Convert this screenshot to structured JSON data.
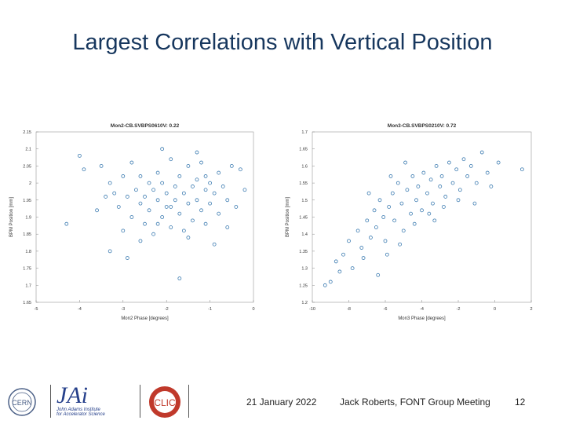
{
  "slide": {
    "title": "Largest Correlations with Vertical Position",
    "date": "21 January 2022",
    "author_meeting": "Jack Roberts, FONT Group Meeting",
    "page_number": "12"
  },
  "logos": {
    "cern": "CERN",
    "jai": "JAi",
    "jai_text_line1": "John Adams Institute",
    "jai_text_line2": "for Accelerator Science",
    "clic": "CLIC"
  },
  "colors": {
    "title": "#17375e",
    "marker": "#3a7ab0"
  },
  "chart_data": [
    {
      "type": "scatter",
      "title": "Mon2-CB.SVBPS0610V: 0.22",
      "xlabel": "Mon2 Phase [degrees]",
      "ylabel": "BPM Position [mm]",
      "xlim": [
        -5,
        0
      ],
      "ylim": [
        1.65,
        2.15
      ],
      "xticks": [
        "-5",
        "-4",
        "-3",
        "-2",
        "-1",
        "0"
      ],
      "yticks": [
        "2.15",
        "2.1",
        "2.05",
        "2",
        "1.95",
        "1.9",
        "1.85",
        "1.8",
        "1.75",
        "1.7",
        "1.65"
      ],
      "correlation": 0.22,
      "points": [
        [
          -4.0,
          2.08
        ],
        [
          -3.9,
          2.04
        ],
        [
          -3.5,
          2.05
        ],
        [
          -3.3,
          2.0
        ],
        [
          -3.2,
          1.97
        ],
        [
          -3.1,
          1.93
        ],
        [
          -3.0,
          2.02
        ],
        [
          -2.9,
          1.96
        ],
        [
          -2.8,
          1.9
        ],
        [
          -2.8,
          2.06
        ],
        [
          -2.7,
          1.98
        ],
        [
          -2.6,
          1.94
        ],
        [
          -2.6,
          2.02
        ],
        [
          -2.5,
          1.88
        ],
        [
          -2.5,
          1.96
        ],
        [
          -2.4,
          2.0
        ],
        [
          -2.4,
          1.92
        ],
        [
          -2.3,
          1.85
        ],
        [
          -2.3,
          1.98
        ],
        [
          -2.2,
          2.03
        ],
        [
          -2.2,
          1.95
        ],
        [
          -2.1,
          1.9
        ],
        [
          -2.1,
          2.0
        ],
        [
          -2.0,
          1.97
        ],
        [
          -2.0,
          1.93
        ],
        [
          -1.9,
          2.07
        ],
        [
          -1.9,
          1.87
        ],
        [
          -1.8,
          1.99
        ],
        [
          -1.8,
          1.95
        ],
        [
          -1.7,
          2.02
        ],
        [
          -1.7,
          1.91
        ],
        [
          -1.6,
          1.97
        ],
        [
          -1.6,
          1.86
        ],
        [
          -1.5,
          2.05
        ],
        [
          -1.5,
          1.94
        ],
        [
          -1.4,
          1.99
        ],
        [
          -1.4,
          1.89
        ],
        [
          -1.3,
          2.01
        ],
        [
          -1.3,
          1.95
        ],
        [
          -1.2,
          1.92
        ],
        [
          -1.2,
          2.06
        ],
        [
          -1.1,
          1.98
        ],
        [
          -1.1,
          1.88
        ],
        [
          -1.0,
          2.0
        ],
        [
          -1.0,
          1.94
        ],
        [
          -0.9,
          1.97
        ],
        [
          -0.8,
          2.03
        ],
        [
          -0.8,
          1.91
        ],
        [
          -0.7,
          1.99
        ],
        [
          -0.6,
          1.95
        ],
        [
          -0.5,
          2.05
        ],
        [
          -0.4,
          1.93
        ],
        [
          -3.3,
          1.8
        ],
        [
          -2.9,
          1.78
        ],
        [
          -1.7,
          1.72
        ],
        [
          -0.9,
          1.82
        ],
        [
          -4.3,
          1.88
        ],
        [
          -3.6,
          1.92
        ],
        [
          -2.1,
          2.1
        ],
        [
          -1.3,
          2.09
        ],
        [
          -0.2,
          1.98
        ],
        [
          -3.0,
          1.86
        ],
        [
          -2.6,
          1.83
        ],
        [
          -1.5,
          1.84
        ],
        [
          -0.6,
          1.87
        ],
        [
          -3.4,
          1.96
        ],
        [
          -2.2,
          1.88
        ],
        [
          -1.9,
          1.93
        ],
        [
          -1.1,
          2.02
        ],
        [
          -0.3,
          2.04
        ]
      ]
    },
    {
      "type": "scatter",
      "title": "Mon3-CB.SVBPS0210V: 0.72",
      "xlabel": "Mon3 Phase [degrees]",
      "ylabel": "BPM Position [mm]",
      "xlim": [
        -10,
        2
      ],
      "ylim": [
        1.2,
        1.7
      ],
      "xticks": [
        "-10",
        "-8",
        "-6",
        "-4",
        "-2",
        "0",
        "2"
      ],
      "yticks": [
        "1.7",
        "1.65",
        "1.6",
        "1.55",
        "1.5",
        "1.45",
        "1.4",
        "1.35",
        "1.3",
        "1.25",
        "1.2"
      ],
      "correlation": 0.72,
      "points": [
        [
          -9.0,
          1.26
        ],
        [
          -8.7,
          1.32
        ],
        [
          -8.3,
          1.34
        ],
        [
          -8.0,
          1.38
        ],
        [
          -7.8,
          1.3
        ],
        [
          -7.5,
          1.41
        ],
        [
          -7.3,
          1.36
        ],
        [
          -7.0,
          1.44
        ],
        [
          -6.8,
          1.39
        ],
        [
          -6.6,
          1.47
        ],
        [
          -6.5,
          1.42
        ],
        [
          -6.3,
          1.5
        ],
        [
          -6.1,
          1.45
        ],
        [
          -6.0,
          1.38
        ],
        [
          -5.8,
          1.48
        ],
        [
          -5.6,
          1.52
        ],
        [
          -5.5,
          1.44
        ],
        [
          -5.3,
          1.55
        ],
        [
          -5.1,
          1.49
        ],
        [
          -5.0,
          1.41
        ],
        [
          -4.8,
          1.53
        ],
        [
          -4.6,
          1.46
        ],
        [
          -4.5,
          1.57
        ],
        [
          -4.3,
          1.5
        ],
        [
          -4.2,
          1.54
        ],
        [
          -4.0,
          1.47
        ],
        [
          -3.9,
          1.58
        ],
        [
          -3.7,
          1.52
        ],
        [
          -3.5,
          1.56
        ],
        [
          -3.4,
          1.49
        ],
        [
          -3.2,
          1.6
        ],
        [
          -3.0,
          1.54
        ],
        [
          -2.9,
          1.57
        ],
        [
          -2.7,
          1.51
        ],
        [
          -2.5,
          1.61
        ],
        [
          -2.3,
          1.55
        ],
        [
          -2.1,
          1.59
        ],
        [
          -1.9,
          1.53
        ],
        [
          -1.7,
          1.62
        ],
        [
          -1.5,
          1.57
        ],
        [
          -1.3,
          1.6
        ],
        [
          -1.0,
          1.55
        ],
        [
          -0.7,
          1.64
        ],
        [
          -0.4,
          1.58
        ],
        [
          0.2,
          1.61
        ],
        [
          1.5,
          1.59
        ],
        [
          -7.2,
          1.33
        ],
        [
          -6.4,
          1.28
        ],
        [
          -5.9,
          1.34
        ],
        [
          -5.2,
          1.37
        ],
        [
          -4.4,
          1.43
        ],
        [
          -3.6,
          1.46
        ],
        [
          -2.8,
          1.48
        ],
        [
          -2.0,
          1.5
        ],
        [
          -9.3,
          1.25
        ],
        [
          -8.5,
          1.29
        ],
        [
          -6.9,
          1.52
        ],
        [
          -5.7,
          1.57
        ],
        [
          -4.9,
          1.61
        ],
        [
          -3.3,
          1.44
        ],
        [
          -1.1,
          1.49
        ],
        [
          -0.2,
          1.54
        ]
      ]
    }
  ]
}
